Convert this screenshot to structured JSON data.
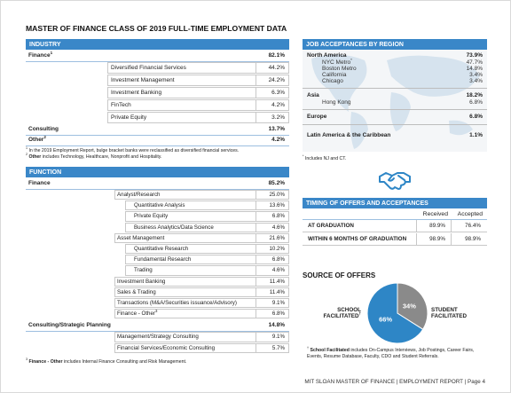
{
  "title": "MASTER OF FINANCE CLASS OF 2019 FULL-TIME EMPLOYMENT DATA",
  "industry": {
    "heading": "INDUSTRY",
    "groups": [
      {
        "label": "Finance",
        "note": "1",
        "value": "82.1%",
        "items": [
          {
            "label": "Diversified Financial Services",
            "value": "44.2%"
          },
          {
            "label": "Investment Management",
            "value": "24.2%"
          },
          {
            "label": "Investment Banking",
            "value": "6.3%"
          },
          {
            "label": "FinTech",
            "value": "4.2%"
          },
          {
            "label": "Private Equity",
            "value": "3.2%"
          }
        ]
      },
      {
        "label": "Consulting",
        "value": "13.7%"
      },
      {
        "label": "Other",
        "note": "2",
        "value": "4.2%"
      }
    ],
    "footnotes": [
      {
        "marker": "1",
        "text": "In the 2019 Employment Report, bulge bracket banks were reclassified as diversified financial services."
      },
      {
        "marker": "2",
        "bold": "Other",
        "text": "includes Technology, Healthcare, Nonprofit and Hospitality."
      }
    ]
  },
  "function": {
    "heading": "FUNCTION",
    "groups": [
      {
        "label": "Finance",
        "value": "85.2%",
        "items": [
          {
            "label": "Analyst/Research",
            "value": "25.0%",
            "items": [
              {
                "label": "Quantitative Analysis",
                "value": "13.6%"
              },
              {
                "label": "Private Equity",
                "value": "6.8%"
              },
              {
                "label": "Business Analytics/Data Science",
                "value": "4.6%"
              }
            ]
          },
          {
            "label": "Asset Management",
            "value": "21.6%",
            "items": [
              {
                "label": "Quantitative Research",
                "value": "10.2%"
              },
              {
                "label": "Fundamental Research",
                "value": "6.8%"
              },
              {
                "label": "Trading",
                "value": "4.6%"
              }
            ]
          },
          {
            "label": "Investment Banking",
            "value": "11.4%"
          },
          {
            "label": "Sales & Trading",
            "value": "11.4%"
          },
          {
            "label": "Transactions (M&A/Securities issuance/Advisory)",
            "value": "9.1%"
          },
          {
            "label": "Finance - Other",
            "note": "3",
            "value": "6.8%"
          }
        ]
      },
      {
        "label": "Consulting/Strategic Planning",
        "value": "14.8%",
        "items": [
          {
            "label": "Management/Strategy Consulting",
            "value": "9.1%"
          },
          {
            "label": "Financial Services/Economic Consulting",
            "value": "5.7%"
          }
        ]
      }
    ],
    "footnotes": [
      {
        "marker": "3",
        "bold": "Finance - Other",
        "text": "includes Internal Finance Consulting and Risk Management."
      }
    ]
  },
  "region": {
    "heading": "JOB ACCEPTANCES BY REGION",
    "groups": [
      {
        "label": "North America",
        "value": "73.9%",
        "items": [
          {
            "label": "NYC Metro",
            "note": "*",
            "value": "47.7%"
          },
          {
            "label": "Boston Metro",
            "value": "14.8%"
          },
          {
            "label": "California",
            "value": "3.4%"
          },
          {
            "label": "Chicago",
            "value": "3.4%"
          }
        ]
      },
      {
        "label": "Asia",
        "value": "18.2%",
        "items": [
          {
            "label": "Hong Kong",
            "value": "6.8%"
          }
        ]
      },
      {
        "label": "Europe",
        "value": "6.8%"
      },
      {
        "label": "Latin America & the Caribbean",
        "value": "1.1%"
      }
    ],
    "footnotes": [
      {
        "marker": "*",
        "text": "Includes NJ and CT."
      }
    ]
  },
  "timing": {
    "heading": "TIMING OF OFFERS AND ACCEPTANCES",
    "columns": [
      "Received",
      "Accepted"
    ],
    "rows": [
      {
        "label": "AT GRADUATION",
        "values": [
          "89.9%",
          "76.4%"
        ]
      },
      {
        "label": "WITHIN 6 MONTHS OF GRADUATION",
        "values": [
          "98.9%",
          "98.9%"
        ]
      }
    ]
  },
  "source": {
    "heading": "SOURCE OF OFFERS",
    "slices": [
      {
        "label": "SCHOOL FACILITATED",
        "note": "†",
        "value": 66,
        "value_label": "66%",
        "color": "#2e86c6"
      },
      {
        "label": "STUDENT FACILITATED",
        "value": 34,
        "value_label": "34%",
        "color": "#8a8a8a"
      }
    ],
    "footnotes": [
      {
        "marker": "†",
        "bold": "School Facilitated",
        "text": "includes On-Campus Interviews, Job Postings, Career Fairs, Events, Resume Database, Faculty, CDO and Student Referrals."
      }
    ]
  },
  "footer": "MIT SLOAN MASTER OF FINANCE | EMPLOYMENT REPORT | Page 4"
}
